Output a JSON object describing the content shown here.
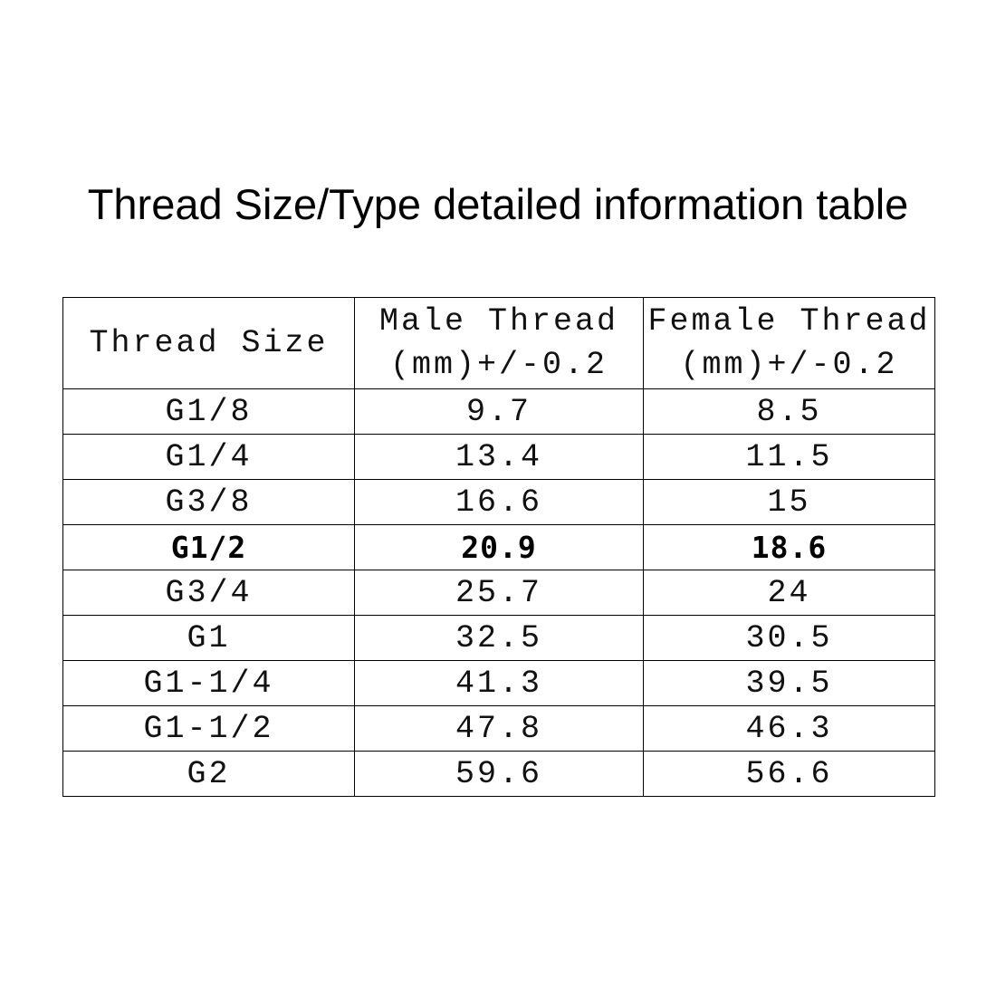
{
  "title": "Thread Size/Type detailed information table",
  "table": {
    "headers": [
      {
        "line1": "Thread Size",
        "line2": ""
      },
      {
        "line1": "Male Thread",
        "line2": "(mm)+/-0.2"
      },
      {
        "line1": "Female Thread",
        "line2": "(mm)+/-0.2"
      }
    ],
    "rows": [
      {
        "size": "G1/8",
        "male": "9.7",
        "female": "8.5",
        "bold": false
      },
      {
        "size": "G1/4",
        "male": "13.4",
        "female": "11.5",
        "bold": false
      },
      {
        "size": "G3/8",
        "male": "16.6",
        "female": "15",
        "bold": false
      },
      {
        "size": "G1/2",
        "male": "20.9",
        "female": "18.6",
        "bold": true
      },
      {
        "size": "G3/4",
        "male": "25.7",
        "female": "24",
        "bold": false
      },
      {
        "size": "G1",
        "male": "32.5",
        "female": "30.5",
        "bold": false
      },
      {
        "size": "G1-1/4",
        "male": "41.3",
        "female": "39.5",
        "bold": false
      },
      {
        "size": "G1-1/2",
        "male": "47.8",
        "female": "46.3",
        "bold": false
      },
      {
        "size": "G2",
        "male": "59.6",
        "female": "56.6",
        "bold": false
      }
    ]
  }
}
